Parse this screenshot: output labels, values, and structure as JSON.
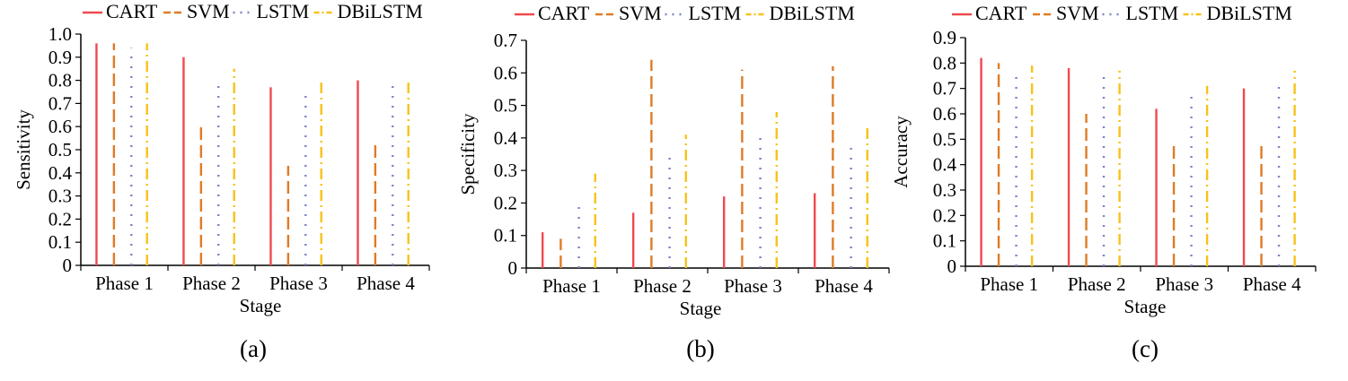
{
  "legend_labels": [
    "CART",
    "SVM",
    "LSTM",
    "DBiLSTM"
  ],
  "series_colors": [
    "#f0494f",
    "#e07b25",
    "#7a83c8",
    "#f7c21a"
  ],
  "chart_data": [
    {
      "type": "bar",
      "panel_label": "(a)",
      "xlabel": "Stage",
      "ylabel": "Sensitivity",
      "categories": [
        "Phase 1",
        "Phase 2",
        "Phase 3",
        "Phase 4"
      ],
      "ylim": [
        0,
        1.0
      ],
      "yticks": [
        "0",
        "0.1",
        "0.2",
        "0.3",
        "0.4",
        "0.5",
        "0.6",
        "0.7",
        "0.8",
        "0.9",
        "1.0"
      ],
      "legend_position": "top",
      "series": [
        {
          "name": "CART",
          "values": [
            0.96,
            0.9,
            0.77,
            0.8
          ]
        },
        {
          "name": "SVM",
          "values": [
            0.96,
            0.62,
            0.43,
            0.52
          ]
        },
        {
          "name": "LSTM",
          "values": [
            0.94,
            0.8,
            0.75,
            0.8
          ]
        },
        {
          "name": "DBiLSTM",
          "values": [
            0.96,
            0.85,
            0.79,
            0.79
          ]
        }
      ]
    },
    {
      "type": "bar",
      "panel_label": "(b)",
      "xlabel": "Stage",
      "ylabel": "Specificity",
      "categories": [
        "Phase 1",
        "Phase 2",
        "Phase 3",
        "Phase 4"
      ],
      "ylim": [
        0,
        0.7
      ],
      "yticks": [
        "0",
        "0.1",
        "0.2",
        "0.3",
        "0.4",
        "0.5",
        "0.6",
        "0.7"
      ],
      "legend_position": "top",
      "series": [
        {
          "name": "CART",
          "values": [
            0.11,
            0.17,
            0.22,
            0.23
          ]
        },
        {
          "name": "SVM",
          "values": [
            0.09,
            0.64,
            0.61,
            0.62
          ]
        },
        {
          "name": "LSTM",
          "values": [
            0.21,
            0.35,
            0.42,
            0.39
          ]
        },
        {
          "name": "DBiLSTM",
          "values": [
            0.29,
            0.41,
            0.48,
            0.44
          ]
        }
      ]
    },
    {
      "type": "bar",
      "panel_label": "(c)",
      "xlabel": "Stage",
      "ylabel": "Accuracy",
      "categories": [
        "Phase 1",
        "Phase 2",
        "Phase 3",
        "Phase 4"
      ],
      "ylim": [
        0,
        0.9
      ],
      "yticks": [
        "0",
        "0.1",
        "0.2",
        "0.3",
        "0.4",
        "0.5",
        "0.6",
        "0.7",
        "0.8",
        "0.9"
      ],
      "legend_position": "top",
      "series": [
        {
          "name": "CART",
          "values": [
            0.82,
            0.78,
            0.62,
            0.7
          ]
        },
        {
          "name": "SVM",
          "values": [
            0.8,
            0.6,
            0.48,
            0.49
          ]
        },
        {
          "name": "LSTM",
          "values": [
            0.76,
            0.76,
            0.67,
            0.72
          ]
        },
        {
          "name": "DBiLSTM",
          "values": [
            0.79,
            0.77,
            0.71,
            0.77
          ]
        }
      ]
    }
  ]
}
